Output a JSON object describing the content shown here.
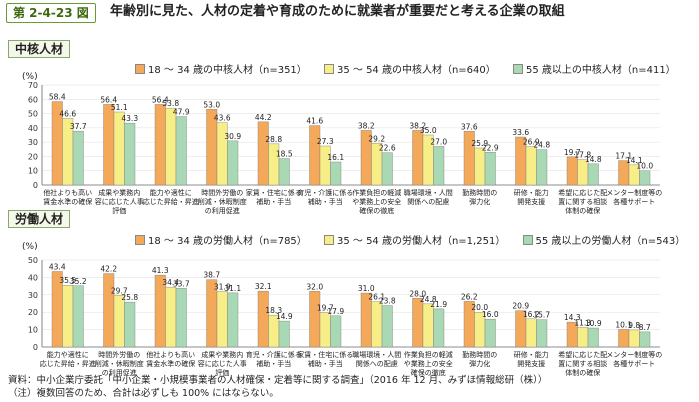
{
  "figure": {
    "number": "第 2-4-23 図",
    "title": "年齢別に見た、人材の定着や育成のために就業者が重要だと考える企業の取組"
  },
  "colors": {
    "series1": "#f4a85a",
    "series2": "#f7ee88",
    "series3": "#a9d8b4",
    "bar_edge": "#7a7a7a",
    "axis": "#666666",
    "grid": "#dddddd"
  },
  "chart_data": [
    {
      "type": "bar",
      "panel_title": "中核人材",
      "unit": "(%)",
      "ylim": [
        0,
        70
      ],
      "yticks": [
        0,
        10,
        20,
        30,
        40,
        50,
        60,
        70
      ],
      "grid": true,
      "legend_position": "top",
      "categories": [
        [
          "他社よりも高い",
          "賃金水準の確保"
        ],
        [
          "成果や業務内",
          "容に応じた人事",
          "評価"
        ],
        [
          "能力や適性に",
          "応じた昇給・昇進"
        ],
        [
          "時間外労働の",
          "削減・休暇制度",
          "の利用促進"
        ],
        [
          "家賃・住宅に係る",
          "補助・手当"
        ],
        [
          "育児・介護に係る",
          "補助・手当"
        ],
        [
          "作業負担の軽減",
          "や業務上の安全",
          "確保の徹底"
        ],
        [
          "職場環境・人間",
          "関係への配慮"
        ],
        [
          "勤務時間の",
          "弾力化"
        ],
        [
          "研修・能力",
          "開発支援"
        ],
        [
          "希望に応じた配",
          "置に関する相談",
          "体制の確保"
        ],
        [
          "メンター制度等の",
          "各種サポート"
        ]
      ],
      "series": [
        {
          "name": "18 ～ 34 歳の中核人材（n=351）",
          "values": [
            58.4,
            56.4,
            56.4,
            53.0,
            44.2,
            41.6,
            38.2,
            38.2,
            37.6,
            33.6,
            19.7,
            17.1
          ]
        },
        {
          "name": "35 ～ 54 歳の中核人材（n=640）",
          "values": [
            46.6,
            51.1,
            53.8,
            43.6,
            28.8,
            27.3,
            29.2,
            35.0,
            25.9,
            26.9,
            17.8,
            14.1
          ]
        },
        {
          "name": "55 歳以上の中核人材（n=411）",
          "values": [
            37.7,
            43.3,
            47.9,
            30.9,
            18.5,
            16.1,
            22.6,
            27.0,
            22.9,
            24.8,
            14.8,
            10.0
          ]
        }
      ]
    },
    {
      "type": "bar",
      "panel_title": "労働人材",
      "unit": "(%)",
      "ylim": [
        0,
        50
      ],
      "yticks": [
        0,
        10,
        20,
        30,
        40,
        50
      ],
      "grid": true,
      "legend_position": "top",
      "categories": [
        [
          "能力や適性に",
          "応じた昇給・昇進"
        ],
        [
          "時間外労働の",
          "削減・休暇制度",
          "の利用促進"
        ],
        [
          "他社よりも高い",
          "賃金水準の確保"
        ],
        [
          "成果や業務内",
          "容に応じた人事",
          "評価"
        ],
        [
          "育児・介護に係る",
          "補助・手当"
        ],
        [
          "家賃・住宅に係る",
          "補助・手当"
        ],
        [
          "職場環境・人間",
          "関係への配慮"
        ],
        [
          "作業負担の軽減",
          "や業務上の安全",
          "確保の徹底"
        ],
        [
          "勤務時間の",
          "弾力化"
        ],
        [
          "研修・能力",
          "開発支援"
        ],
        [
          "希望に応じた配",
          "置に関する相談",
          "体制の確保"
        ],
        [
          "メンター制度等の",
          "各種サポート"
        ]
      ],
      "series": [
        {
          "name": "18 ～ 34 歳の労働人材（n=785）",
          "values": [
            43.4,
            42.2,
            41.3,
            38.7,
            32.1,
            32.0,
            31.0,
            28.0,
            26.2,
            20.9,
            14.3,
            10.1
          ]
        },
        {
          "name": "35 ～ 54 歳の労働人材（n=1,251）",
          "values": [
            35.5,
            29.7,
            34.4,
            31.9,
            18.3,
            19.7,
            26.1,
            24.8,
            20.0,
            16.2,
            11.3,
            9.8
          ]
        },
        {
          "name": "55 歳以上の労働人材（n=543）",
          "values": [
            35.2,
            25.8,
            33.7,
            31.1,
            14.9,
            17.9,
            23.8,
            21.9,
            16.0,
            15.7,
            10.9,
            8.7
          ]
        }
      ]
    }
  ],
  "source": {
    "line1": "資料：中小企業庁委託「中小企業・小規模事業者の人材確保・定着等に関する調査」（2016 年 12 月、みずほ情報総研（株））",
    "line2": "（注）複数回答のため、合計は必ずしも 100% にはならない。"
  }
}
